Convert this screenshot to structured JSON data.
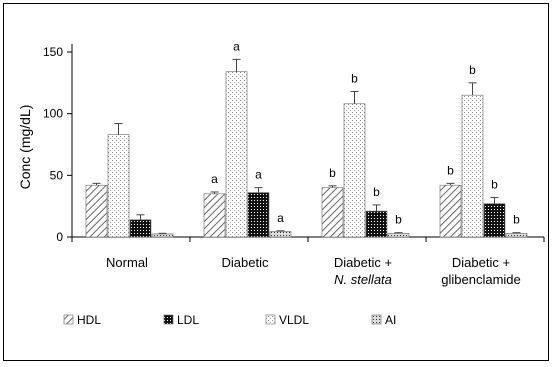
{
  "chart_data": {
    "type": "bar",
    "title": "",
    "xlabel": "",
    "ylabel": "Conc (mg/dL)",
    "ylim": [
      0,
      150
    ],
    "yticks": [
      0,
      50,
      100,
      150
    ],
    "grid": false,
    "legend_position": "bottom",
    "categories": [
      [
        "Normal"
      ],
      [
        "Diabetic"
      ],
      [
        "Diabetic +",
        "N. stellata"
      ],
      [
        "Diabetic +",
        "glibenclamide"
      ]
    ],
    "series": [
      {
        "name": "HDL",
        "pattern": "diagonal-hatch",
        "values": [
          42,
          35,
          40,
          42
        ],
        "errors": [
          1.5,
          1.5,
          1.5,
          1.5
        ],
        "labels": [
          "",
          "a",
          "b",
          "b"
        ]
      },
      {
        "name": "VLDL",
        "pattern": "light-dots",
        "values": [
          83,
          134,
          108,
          115
        ],
        "errors": [
          9,
          10,
          10,
          10
        ],
        "labels": [
          "",
          "a",
          "b",
          "b"
        ]
      },
      {
        "name": "LDL",
        "pattern": "black-dots",
        "values": [
          14,
          36,
          21,
          27
        ],
        "errors": [
          4,
          4,
          5,
          5
        ],
        "labels": [
          "",
          "a",
          "b",
          "b"
        ]
      },
      {
        "name": "AI",
        "pattern": "small-dots",
        "values": [
          2.5,
          4.5,
          3.0,
          3.0
        ],
        "errors": [
          0.5,
          0.5,
          0.5,
          0.5
        ],
        "labels": [
          "",
          "a",
          "b",
          "b"
        ]
      }
    ],
    "legend": [
      "HDL",
      "LDL",
      "VLDL",
      "AI"
    ],
    "colors": {
      "axis": "#000000",
      "bar_stroke": "#555555",
      "dark_fill": "#111111"
    }
  }
}
